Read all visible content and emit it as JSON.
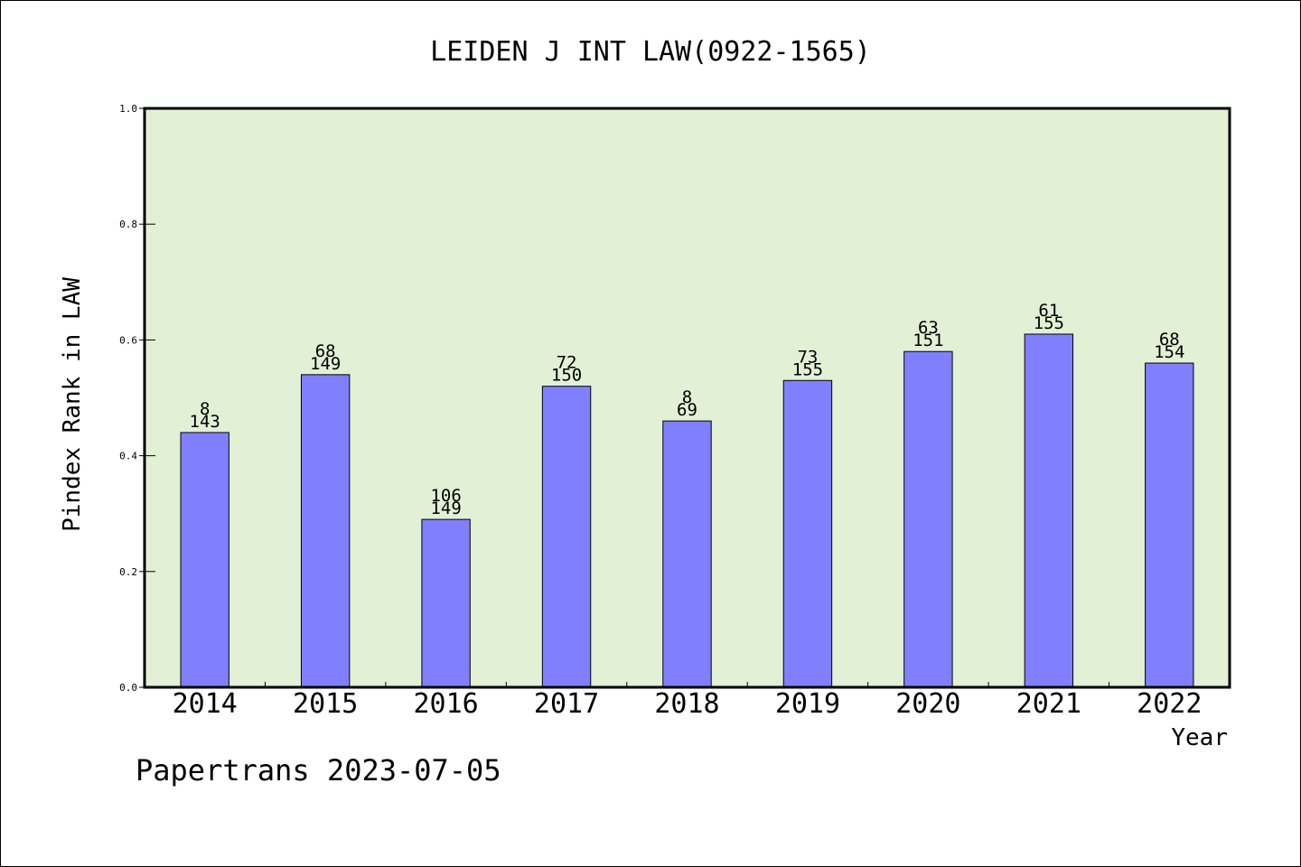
{
  "chart_data": {
    "type": "bar",
    "title": "LEIDEN J INT LAW(0922-1565)",
    "xlabel": "Year",
    "ylabel": "Pindex Rank in LAW",
    "ylim": [
      0,
      1.0
    ],
    "yticks": [
      "0.0",
      "0.2",
      "0.4",
      "0.6",
      "0.8",
      "1.0"
    ],
    "grid": false,
    "categories": [
      "2014",
      "2015",
      "2016",
      "2017",
      "2018",
      "2019",
      "2020",
      "2021",
      "2022"
    ],
    "values": [
      0.44,
      0.54,
      0.29,
      0.52,
      0.46,
      0.53,
      0.58,
      0.61,
      0.56
    ],
    "annotations_top": [
      "8",
      "68",
      "106",
      "72",
      "8",
      "73",
      "63",
      "61",
      "68"
    ],
    "annotations_bottom": [
      "143",
      "149",
      "149",
      "150",
      "69",
      "155",
      "151",
      "155",
      "154"
    ],
    "colors": {
      "bar": "#8080ff",
      "plot_bg": "#e2f0d6",
      "axis": "#000000"
    }
  },
  "footer": "Papertrans 2023-07-05"
}
